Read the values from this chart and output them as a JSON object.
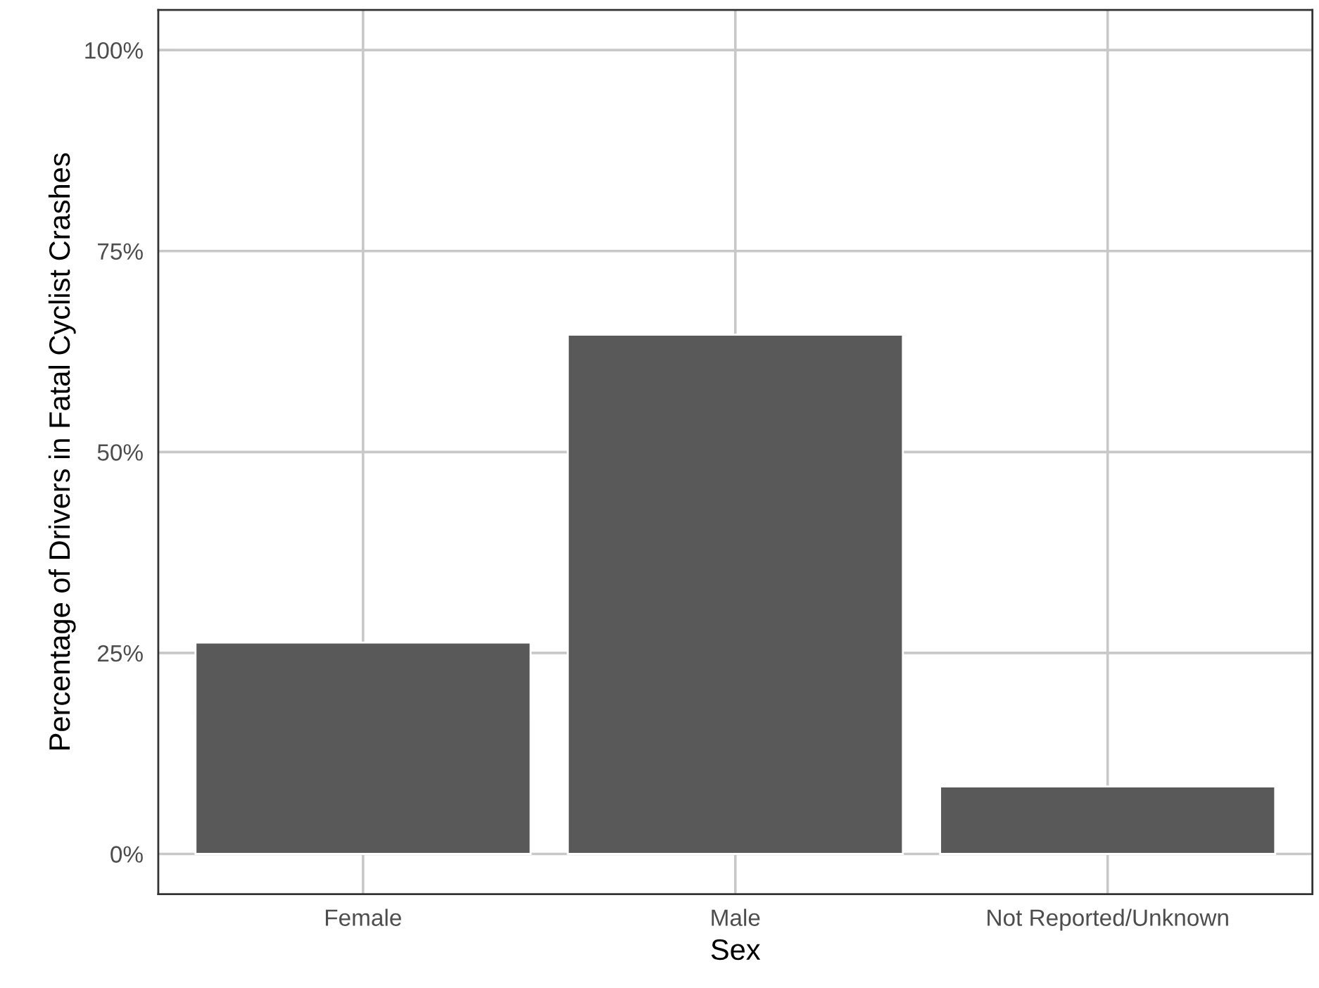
{
  "chart_data": {
    "type": "bar",
    "xlabel": "Sex",
    "ylabel": "Percentage of Drivers in Fatal Cyclist Crashes",
    "categories": [
      "Female",
      "Male",
      "Not Reported/Unknown"
    ],
    "values": [
      26.3,
      64.6,
      8.4
    ],
    "color": "#595959",
    "ylim": [
      -5,
      105
    ],
    "yticks": [
      {
        "value": 0,
        "label": "0%"
      },
      {
        "value": 25,
        "label": "25%"
      },
      {
        "value": 50,
        "label": "50%"
      },
      {
        "value": 75,
        "label": "75%"
      },
      {
        "value": 100,
        "label": "100%"
      }
    ],
    "grid": true
  }
}
